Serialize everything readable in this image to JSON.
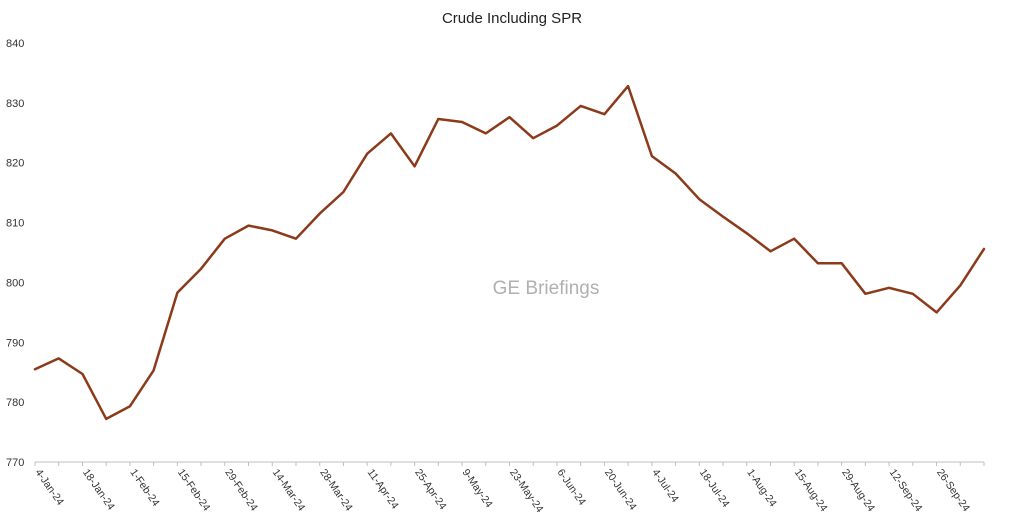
{
  "chart_data": {
    "type": "line",
    "title": "Crude Including SPR",
    "watermark": "GE Briefings",
    "xlabel": "",
    "ylabel": "",
    "ylim": [
      770,
      840
    ],
    "yticks": [
      770,
      780,
      790,
      800,
      810,
      820,
      830,
      840
    ],
    "grid": false,
    "legend": "none",
    "line_color": "#8B3A1A",
    "x": [
      "4-Jan-24",
      "11-Jan-24",
      "18-Jan-24",
      "25-Jan-24",
      "1-Feb-24",
      "8-Feb-24",
      "15-Feb-24",
      "22-Feb-24",
      "29-Feb-24",
      "7-Mar-24",
      "14-Mar-24",
      "21-Mar-24",
      "28-Mar-24",
      "4-Apr-24",
      "11-Apr-24",
      "18-Apr-24",
      "25-Apr-24",
      "2-May-24",
      "9-May-24",
      "16-May-24",
      "23-May-24",
      "30-May-24",
      "6-Jun-24",
      "13-Jun-24",
      "20-Jun-24",
      "27-Jun-24",
      "4-Jul-24",
      "11-Jul-24",
      "18-Jul-24",
      "25-Jul-24",
      "1-Aug-24",
      "8-Aug-24",
      "15-Aug-24",
      "22-Aug-24",
      "29-Aug-24",
      "5-Sep-24",
      "12-Sep-24",
      "19-Sep-24",
      "26-Sep-24",
      "3-Oct-24",
      "10-Oct-24"
    ],
    "xtick_labels": [
      "4-Jan-24",
      "18-Jan-24",
      "1-Feb-24",
      "15-Feb-24",
      "29-Feb-24",
      "14-Mar-24",
      "28-Mar-24",
      "11-Apr-24",
      "25-Apr-24",
      "9-May-24",
      "23-May-24",
      "6-Jun-24",
      "20-Jun-24",
      "4-Jul-24",
      "18-Jul-24",
      "1-Aug-24",
      "15-Aug-24",
      "29-Aug-24",
      "12-Sep-24",
      "26-Sep-24"
    ],
    "series": [
      {
        "values": [
          785.5,
          787.3,
          784.7,
          777.2,
          779.3,
          785.3,
          798.3,
          802.3,
          807.3,
          809.5,
          808.7,
          807.3,
          811.5,
          815.1,
          821.5,
          824.9,
          819.4,
          827.3,
          826.8,
          824.9,
          827.6,
          824.1,
          826.2,
          829.5,
          828.1,
          832.8,
          821.1,
          818.2,
          813.9,
          811.0,
          808.2,
          805.2,
          807.3,
          803.2,
          803.2,
          798.1,
          799.1,
          798.1,
          795.0,
          799.5,
          805.6
        ]
      }
    ]
  }
}
